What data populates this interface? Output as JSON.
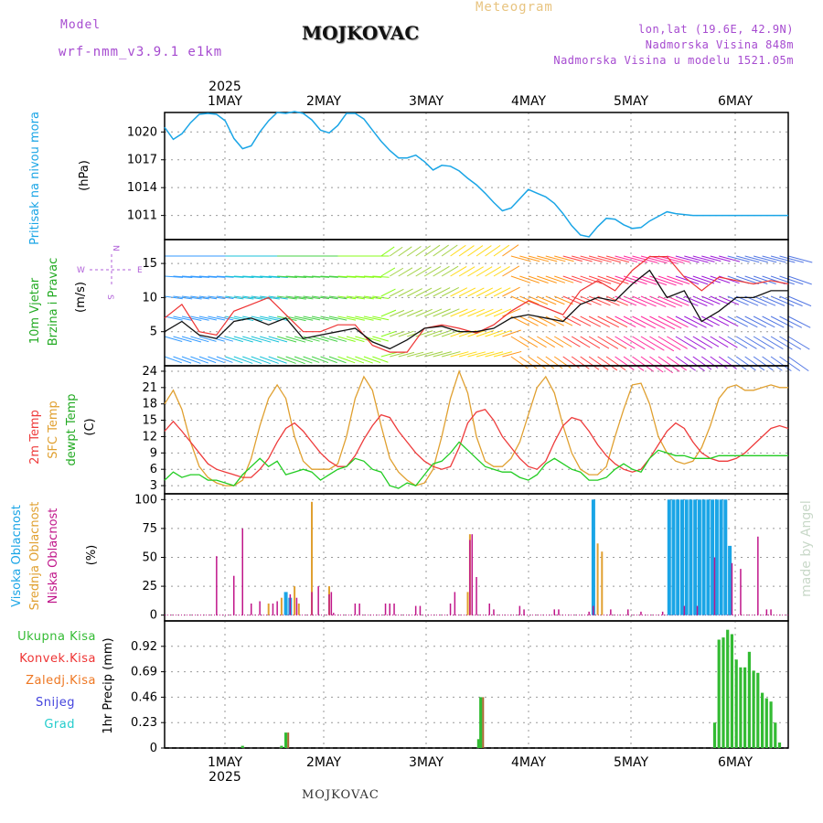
{
  "header": {
    "model_label": "Model",
    "model_name": "wrf-nmm_v3.9.1 e1km",
    "station": "MOJKOVAC",
    "meteogram": "Meteogram",
    "lonlat": "lon,lat (19.6E, 42.9N)",
    "altitude": "Nadmorska Visina 848m",
    "model_altitude": "Nadmorska Visina u modelu 1521.05m",
    "footer_station": "MOJKOVAC",
    "watermark": "made by Angel"
  },
  "colors": {
    "pressure": "#1aa5e6",
    "temp2m": "#ee3b3b",
    "sfc": "#e0a030",
    "dew": "#22cc22",
    "high_cloud": "#1aa5e6",
    "mid_cloud": "#e0a030",
    "low_cloud": "#c0168a",
    "total_precip": "#33bb33",
    "conv_precip": "#ee3333",
    "frozen_precip": "#ee7722",
    "snow": "#4444dd",
    "hail": "#22cccc"
  },
  "chart_data": [
    {
      "type": "line",
      "panel": "pressure",
      "ylabel_main": "Pritisak na nivou mora",
      "ylabel_unit": "(hPa)",
      "yticks": [
        1011,
        1014,
        1017,
        1020
      ],
      "ylim": [
        1008.4,
        1022.1
      ],
      "x_unit": "hours from 2025-04-30 12:00",
      "top_axis_year": "2025",
      "day_labels": [
        "1MAY",
        "2MAY",
        "3MAY",
        "4MAY",
        "5MAY",
        "6MAY"
      ],
      "bottom_axis_year": "2025",
      "series": [
        {
          "x": [
            0,
            2,
            4,
            6,
            8,
            10,
            12,
            14,
            16,
            18,
            20,
            22,
            24,
            26,
            28,
            30,
            32,
            34,
            36,
            38,
            40,
            42,
            44,
            46,
            48,
            50,
            52,
            54,
            56,
            58,
            60,
            62,
            64,
            66,
            68,
            70,
            72,
            74,
            76,
            78,
            80,
            82,
            84,
            86,
            88,
            90,
            92,
            94,
            96,
            98,
            100,
            102,
            104,
            106,
            108,
            110,
            112,
            114,
            116,
            118,
            120,
            122,
            124,
            126,
            128,
            130,
            132,
            134,
            136,
            138,
            140,
            142,
            144
          ],
          "y": [
            1020.5,
            1019.2,
            1019.8,
            1021.0,
            1021.9,
            1022.0,
            1021.9,
            1021.2,
            1019.3,
            1018.2,
            1018.5,
            1020.0,
            1021.2,
            1022.1,
            1022.0,
            1022.2,
            1022.0,
            1021.3,
            1020.2,
            1019.9,
            1020.7,
            1022.0,
            1022.0,
            1021.4,
            1020.2,
            1019.0,
            1018.0,
            1017.2,
            1017.2,
            1017.5,
            1016.8,
            1015.9,
            1016.4,
            1016.3,
            1015.8,
            1015.0,
            1014.3,
            1013.4,
            1012.4,
            1011.5,
            1011.8,
            1012.8,
            1013.8,
            1013.4,
            1013.0,
            1012.3,
            1011.2,
            1009.9,
            1008.9,
            1008.7,
            1009.8,
            1010.7,
            1010.6,
            1010.0,
            1009.6,
            1009.7,
            1010.4,
            1010.9,
            1011.4,
            1011.2,
            1011.1,
            1011.0,
            1011.0,
            1011.0,
            1011.0,
            1011.0,
            1011.0,
            1011.0,
            1011.0,
            1011.0,
            1011.0,
            1011.0,
            1011.0
          ]
        }
      ]
    },
    {
      "type": "line",
      "panel": "wind",
      "ylabel_main": "10m Vjetar",
      "ylabel_second": "Brzina i Pravac",
      "ylabel_unit": "(m/s)",
      "compass": {
        "n": "N",
        "w": "W",
        "e": "E",
        "s": "S"
      },
      "yticks": [
        5,
        10,
        15
      ],
      "ylim": [
        0,
        18.5
      ],
      "series": [
        {
          "name": "speed",
          "x": [
            0,
            4,
            8,
            12,
            16,
            20,
            24,
            28,
            32,
            36,
            40,
            44,
            48,
            52,
            56,
            60,
            64,
            68,
            72,
            76,
            80,
            84,
            88,
            92,
            96,
            100,
            104,
            108,
            112,
            116,
            120,
            124,
            128,
            132,
            136,
            140,
            144
          ],
          "y": [
            5,
            6.5,
            4.5,
            4,
            6.5,
            7,
            6,
            7,
            4,
            4.5,
            5,
            5.5,
            3.5,
            2.5,
            3.8,
            5.5,
            5.8,
            5,
            5,
            5.5,
            7,
            7.5,
            7,
            6.5,
            9,
            10,
            9.5,
            12,
            14,
            10,
            11,
            6.5,
            8,
            10,
            10,
            11,
            11
          ]
        },
        {
          "name": "gust",
          "x": [
            0,
            4,
            8,
            12,
            16,
            20,
            24,
            28,
            32,
            36,
            40,
            44,
            48,
            52,
            56,
            60,
            64,
            68,
            72,
            76,
            80,
            84,
            88,
            92,
            96,
            100,
            104,
            108,
            112,
            116,
            120,
            124,
            128,
            132,
            136,
            140,
            144
          ],
          "y": [
            7,
            9,
            5,
            4.5,
            8,
            9,
            10,
            7.5,
            5,
            5,
            6,
            6,
            3,
            2,
            2,
            5.5,
            6,
            5.5,
            4.8,
            6,
            8,
            9.5,
            8.5,
            7.5,
            11,
            12.5,
            11,
            14,
            16,
            16,
            13,
            11,
            13,
            12.5,
            12,
            12.5,
            12
          ]
        }
      ]
    },
    {
      "type": "line",
      "panel": "temperature",
      "ylabel_lines": [
        "2m Temp",
        "SFC Temp",
        "dewpt Temp"
      ],
      "ylabel_unit": "(C)",
      "yticks": [
        3,
        6,
        9,
        12,
        15,
        18,
        21,
        24
      ],
      "ylim": [
        1.5,
        25
      ],
      "series": [
        {
          "name": "2m Temp",
          "x": [
            0,
            2,
            4,
            6,
            8,
            10,
            12,
            14,
            16,
            18,
            20,
            22,
            24,
            26,
            28,
            30,
            32,
            34,
            36,
            38,
            40,
            42,
            44,
            46,
            48,
            50,
            52,
            54,
            56,
            58,
            60,
            62,
            64,
            66,
            68,
            70,
            72,
            74,
            76,
            78,
            80,
            82,
            84,
            86,
            88,
            90,
            92,
            94,
            96,
            98,
            100,
            102,
            104,
            106,
            108,
            110,
            112,
            114,
            116,
            118,
            120,
            122,
            124,
            126,
            128,
            130,
            132,
            134,
            136,
            138,
            140,
            142,
            144
          ],
          "y": [
            13,
            14.8,
            13,
            11,
            9,
            7,
            6,
            5.5,
            5,
            4.5,
            4.5,
            6,
            8,
            11,
            13.5,
            14.5,
            13,
            11,
            9,
            7.5,
            6.5,
            6.5,
            8.5,
            11.5,
            14,
            16,
            15.5,
            13,
            11,
            9,
            7.5,
            6.5,
            6,
            6.5,
            10,
            14.5,
            16.5,
            17,
            15,
            12,
            10,
            8,
            6.5,
            6,
            7.5,
            11,
            14,
            15.5,
            15,
            13,
            10.5,
            8.5,
            7,
            6,
            5.5,
            6,
            8,
            10.5,
            13,
            14.5,
            13.5,
            11,
            9,
            8,
            7.5,
            7.5,
            8,
            9,
            10.5,
            12,
            13.5,
            14,
            13.5
          ]
        },
        {
          "name": "SFC Temp",
          "x": [
            0,
            2,
            4,
            6,
            8,
            10,
            12,
            14,
            16,
            18,
            20,
            22,
            24,
            26,
            28,
            30,
            32,
            34,
            36,
            38,
            40,
            42,
            44,
            46,
            48,
            50,
            52,
            54,
            56,
            58,
            60,
            62,
            64,
            66,
            68,
            70,
            72,
            74,
            76,
            78,
            80,
            82,
            84,
            86,
            88,
            90,
            92,
            94,
            96,
            98,
            100,
            102,
            104,
            106,
            108,
            110,
            112,
            114,
            116,
            118,
            120,
            122,
            124,
            126,
            128,
            130,
            132,
            134,
            136,
            138,
            140,
            142,
            144
          ],
          "y": [
            18,
            20.5,
            17,
            11,
            6.5,
            4.5,
            3.5,
            3,
            3,
            4,
            8,
            14,
            19,
            21.5,
            19,
            12,
            7.5,
            6,
            6,
            6,
            7,
            12,
            19,
            23,
            20.5,
            14,
            8,
            5.5,
            4,
            3,
            3.5,
            6,
            12,
            19,
            24,
            20,
            12,
            7.5,
            6.5,
            6.5,
            8,
            11,
            16,
            21,
            23,
            20,
            14,
            9,
            6,
            5,
            5,
            6.5,
            12,
            17,
            21.5,
            21.8,
            18,
            12,
            9,
            7.5,
            7,
            7.5,
            10,
            14,
            19,
            21,
            21.5,
            20.5,
            20.5,
            21,
            21.5,
            21,
            21
          ]
        },
        {
          "name": "dewpt Temp",
          "x": [
            0,
            2,
            4,
            6,
            8,
            10,
            12,
            14,
            16,
            18,
            20,
            22,
            24,
            26,
            28,
            30,
            32,
            34,
            36,
            38,
            40,
            42,
            44,
            46,
            48,
            50,
            52,
            54,
            56,
            58,
            60,
            62,
            64,
            66,
            68,
            70,
            72,
            74,
            76,
            78,
            80,
            82,
            84,
            86,
            88,
            90,
            92,
            94,
            96,
            98,
            100,
            102,
            104,
            106,
            108,
            110,
            112,
            114,
            116,
            118,
            120,
            122,
            124,
            126,
            128,
            130,
            132,
            134,
            136,
            138,
            140,
            142,
            144
          ],
          "y": [
            4,
            5.5,
            4.5,
            5,
            5,
            4,
            4,
            3.5,
            3,
            5,
            6.5,
            8,
            6.5,
            7.5,
            5,
            5.5,
            6,
            5.5,
            4,
            5,
            6,
            6.5,
            8,
            7.5,
            6,
            5.5,
            3,
            2.5,
            3.5,
            3,
            5,
            7,
            7.5,
            9,
            11,
            9.5,
            8,
            6.5,
            6,
            5.5,
            5.5,
            4.5,
            4,
            5,
            7,
            8,
            7,
            6,
            5.5,
            4,
            4,
            4.5,
            6,
            7,
            6,
            5.5,
            8,
            9.5,
            9,
            8.5,
            8.5,
            8,
            8,
            8,
            8.5,
            8.5,
            8.5,
            8.5,
            8.5,
            8.5,
            8.5,
            8.5,
            8.5
          ]
        }
      ]
    },
    {
      "type": "bar",
      "panel": "clouds",
      "ylabel_lines": [
        "Visoka Oblacnost",
        "Srednja Oblacnost",
        "Niska Oblacnost"
      ],
      "ylabel_unit": "(%)",
      "yticks": [
        0,
        25,
        50,
        75,
        100
      ],
      "ylim": [
        -5,
        105
      ],
      "series": [
        {
          "name": "Visoka Oblacnost",
          "x": [
            28,
            29,
            99,
            116.5,
            117.5,
            118.5,
            119.5,
            120.5,
            121.5,
            122.5,
            123.5,
            124.5,
            125.5,
            126.5,
            127.5,
            128.5,
            129.5,
            130.5
          ],
          "y": [
            20,
            15,
            100,
            100,
            100,
            100,
            100,
            100,
            100,
            100,
            100,
            100,
            100,
            100,
            100,
            100,
            100,
            60
          ]
        },
        {
          "name": "Srednja Oblacnost",
          "x": [
            24,
            27,
            30,
            31,
            34,
            38,
            70,
            70.5,
            100,
            101
          ],
          "y": [
            10,
            15,
            25,
            10,
            98,
            25,
            20,
            70,
            62,
            55
          ]
        },
        {
          "name": "Niska Oblacnost",
          "x": [
            12,
            16,
            18,
            20,
            22,
            25,
            26,
            29,
            30.5,
            34,
            35.5,
            38,
            38.5,
            39,
            44,
            45,
            51,
            52,
            53,
            58,
            59,
            66,
            67,
            70.5,
            71,
            72,
            75,
            76,
            82,
            83,
            90,
            91,
            98,
            99,
            103,
            107,
            110,
            115,
            120,
            123,
            127,
            131,
            133,
            137,
            139,
            140
          ],
          "y": [
            51,
            34,
            75,
            10,
            12,
            10,
            12,
            18,
            15,
            20,
            25,
            18,
            20,
            2,
            10,
            10,
            10,
            10,
            10,
            8,
            8,
            10,
            20,
            65,
            70,
            33,
            10,
            5,
            8,
            5,
            5,
            5,
            3,
            8,
            5,
            5,
            3,
            3,
            8,
            8,
            50,
            45,
            40,
            68,
            5,
            5
          ]
        }
      ]
    },
    {
      "type": "bar",
      "panel": "precipitation",
      "ylabel_lines": [
        "Ukupna Kisa",
        "Konvek.Kisa",
        "Zaledj.Kisa",
        "Snijeg",
        "Grad"
      ],
      "ylabel_unit": "1hr Precip (mm)",
      "yticks": [
        0,
        0.23,
        0.46,
        0.69,
        0.92
      ],
      "ylim": [
        0,
        1.15
      ],
      "series": [
        {
          "name": "Ukupna Kisa",
          "x": [
            18,
            27,
            28,
            72.5,
            73,
            127,
            128,
            129,
            130,
            131,
            132,
            133,
            134,
            135,
            136,
            137,
            138,
            139,
            140,
            141,
            142
          ],
          "y": [
            0.02,
            0.02,
            0.14,
            0.08,
            0.46,
            0.23,
            0.98,
            1.0,
            1.07,
            1.03,
            0.8,
            0.73,
            0.73,
            0.87,
            0.7,
            0.68,
            0.5,
            0.45,
            0.42,
            0.23,
            0.05
          ]
        },
        {
          "name": "Konvek.Kisa",
          "x": [
            28,
            73
          ],
          "y": [
            0.14,
            0.46
          ]
        }
      ]
    }
  ]
}
